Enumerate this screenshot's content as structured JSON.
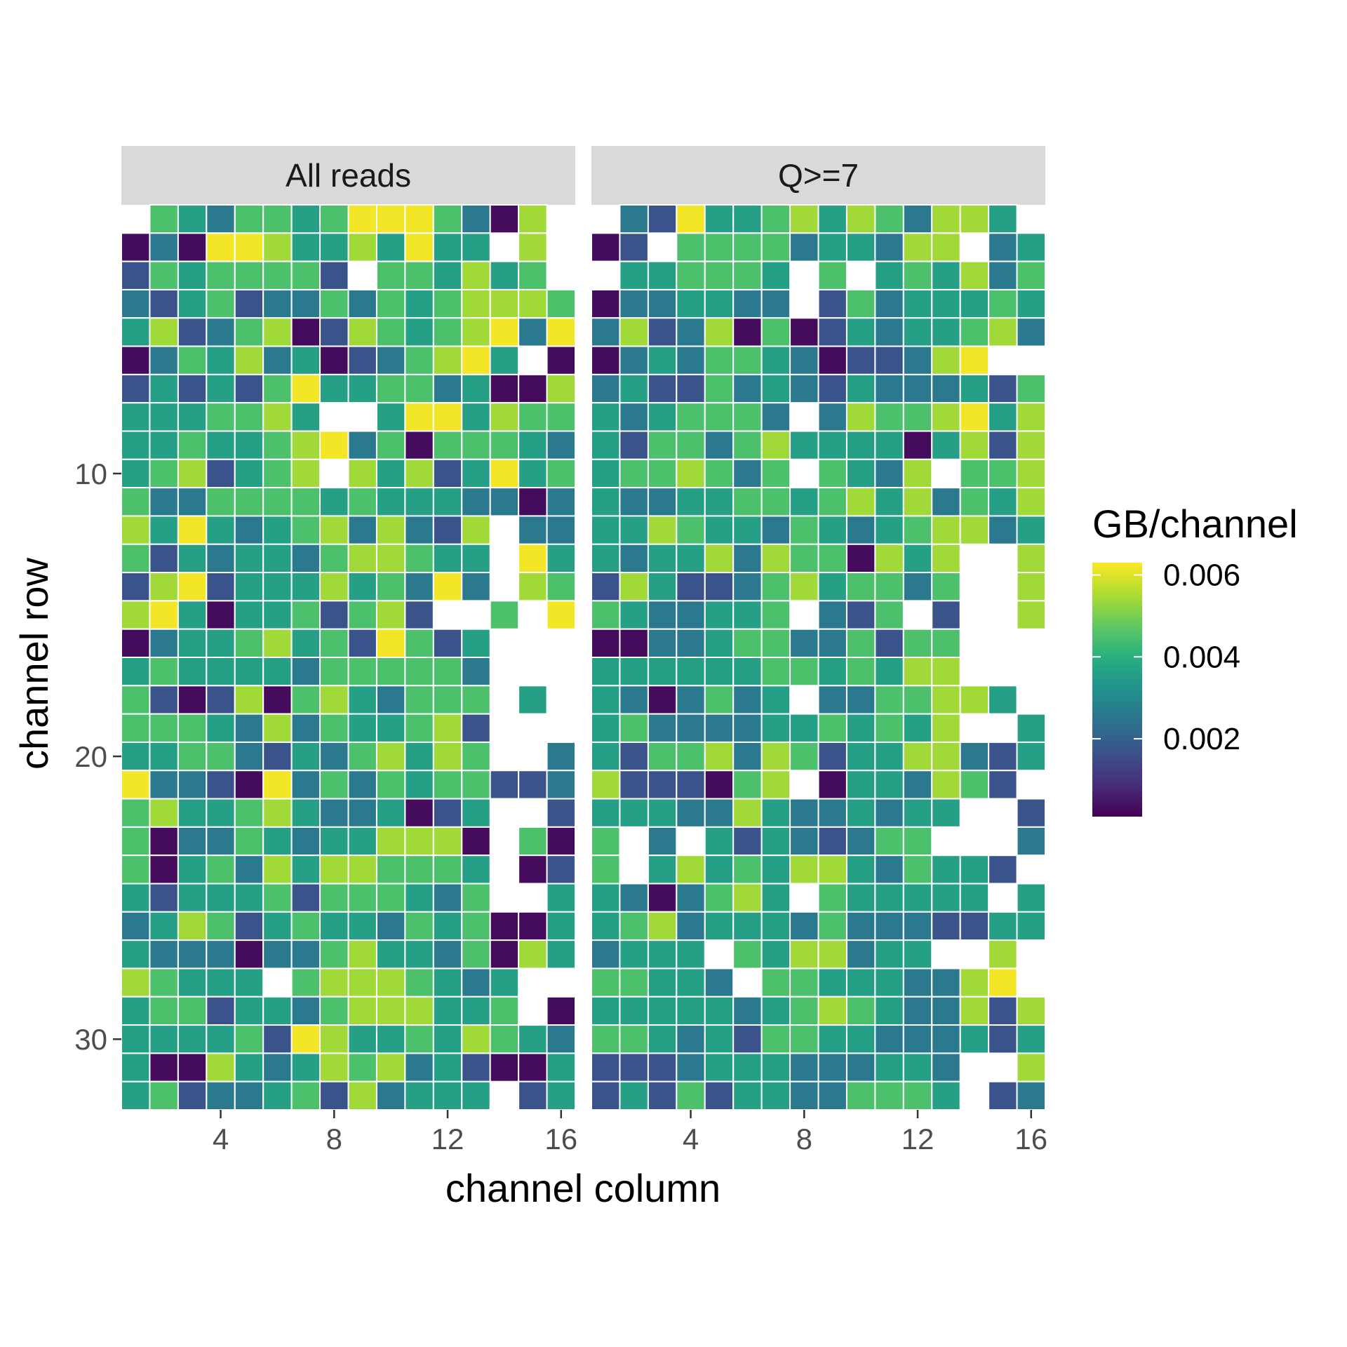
{
  "chart_data": {
    "type": "heatmap",
    "xlabel": "channel column",
    "ylabel": "channel row",
    "x_ticks": [
      4,
      8,
      12,
      16
    ],
    "y_ticks": [
      10,
      20,
      30
    ],
    "xlim": [
      0.5,
      16.5
    ],
    "ylim": [
      0.5,
      32.5
    ],
    "y_reversed": true,
    "legend": {
      "title": "GB/channel",
      "position": "right",
      "ticks": [
        {
          "value": 0.006,
          "label": "0.006"
        },
        {
          "value": 0.004,
          "label": "0.004"
        },
        {
          "value": 0.002,
          "label": "0.002"
        }
      ],
      "range": [
        0.0001,
        0.0063
      ],
      "palette": "viridis"
    },
    "panels": [
      {
        "name": "All reads",
        "rows": [
          "-4324434666A4205-",
          "0206653353633-5-",
          "14344441-443534-1",
          "2134122424345554",
          "3512450154345627",
          "02435230124563-020",
          "1313146334423005",
          "3334453--3663544",
          "3343345624044432",
          "3451345-53513634",
          "4224444343332202",
          "5363234525215-22",
          "4132332455433-63",
          "1561333534262-54",
          "56303341451--4-6",
          "0233453416413---",
          "3433332444442---",
          "4101504532444-3-4",
          "4443252433451---",
          "3344213245354--2",
          "6221062424344112",
          "4533453223013--1",
          "4022432335550-40",
          "4034253554443-01",
          "3133341444324--31",
          "2354134332434003",
          "3222022453324053",
          "54333-45554323--",
          "34413324555334-0",
          "3333416533435432",
          "3005323545231003",
          "3412234152333-134"
        ]
      },
      {
        "name": "Q>=7",
        "rows": [
          "-21633453542553-",
          "01-4444233255-235",
          "-334443-4-343524-",
          "0223322-14233343",
          "2512504013233452",
          "02324432011256--21",
          "2311423213222314",
          "3234442-2544563543",
          "3144245333303515",
          "3445424-4325-445",
          "3223344345352435",
          "3354332432345523",
          "3233525440535--5",
          "1531124534424--5",
          "4322334-214-1--5",
          "0022344224144---",
          "3333334434355---",
          "3202423-2244553--4",
          "3422223343435--3",
          "3144525413355213",
          "5111045-0332541-3-1",
          "3332253223233--1",
          "4-2-31321244---2",
          "4-3534355324331-1",
          "3202453-433333-3-3",
          "3452333242221133",
          "2333-4355233--5-",
          "44332-443332256--",
          "3333323454322515",
          "4432314433222313",
          "1112333222332--5-5",
          "1314133224443-124"
        ]
      }
    ],
    "value_levels": [
      0.0003,
      0.0017,
      0.0026,
      0.0036,
      0.0045,
      0.0054,
      0.0062
    ]
  }
}
